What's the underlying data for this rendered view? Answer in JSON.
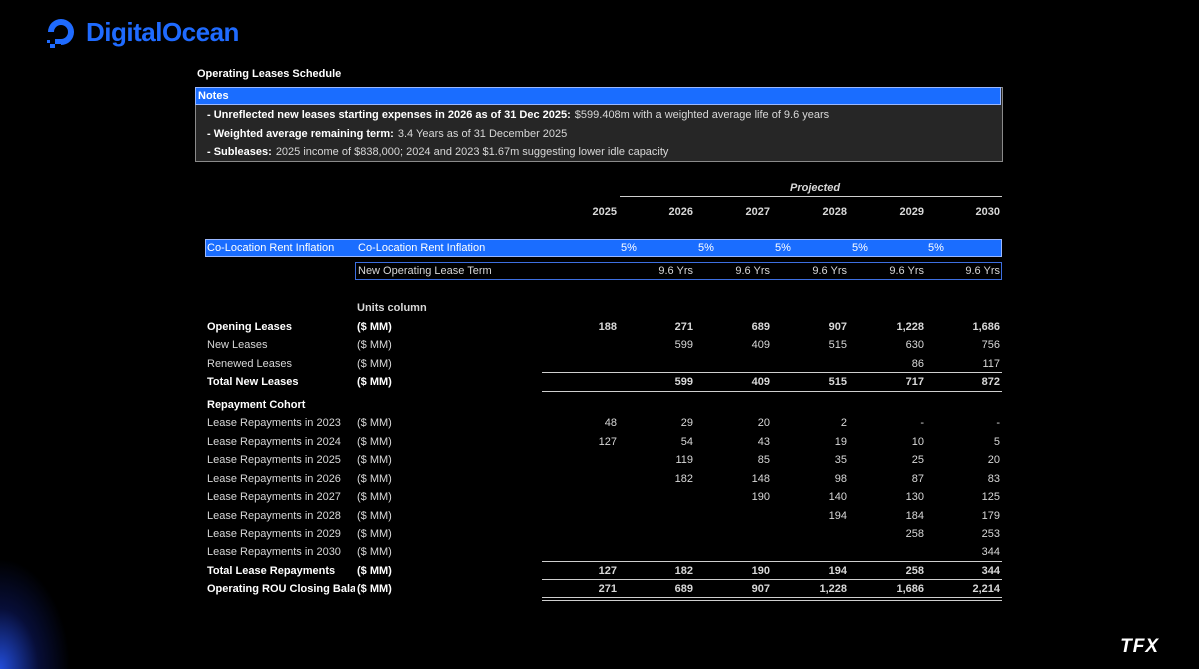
{
  "logo": "DigitalOcean",
  "title": "Operating Leases Schedule",
  "notes": {
    "header": "Notes",
    "items": [
      {
        "label": "- Unreflected new leases starting expenses in 2026 as of 31 Dec 2025:",
        "text": "$599.408m with a weighted average life of 9.6 years"
      },
      {
        "label": "- Weighted average remaining term:",
        "text": "3.4 Years as of 31 December 2025"
      },
      {
        "label": "- Subleases:",
        "text": "2025 income of $838,000; 2024 and 2023 $1.67m suggesting lower idle capacity"
      }
    ]
  },
  "projected_label": "Projected",
  "years": [
    "2025",
    "2026",
    "2027",
    "2028",
    "2029",
    "2030"
  ],
  "inflation_row": {
    "label": "Co-Location Rent Inflation",
    "label2": "Co-Location Rent Inflation",
    "values": [
      null,
      "5%",
      "5%",
      "5%",
      "5%",
      "5%"
    ]
  },
  "term_row": {
    "label": "New Operating Lease Term",
    "values": [
      null,
      "9.6 Yrs",
      "9.6 Yrs",
      "9.6 Yrs",
      "9.6 Yrs",
      "9.6 Yrs"
    ]
  },
  "units_header": "Units column",
  "rows": [
    {
      "label": "Opening Leases",
      "unit": "($ MM)",
      "bold": true,
      "values": [
        "188",
        "271",
        "689",
        "907",
        "1,228",
        "1,686"
      ]
    },
    {
      "label": "New Leases",
      "unit": "($ MM)",
      "values": [
        null,
        "599",
        "409",
        "515",
        "630",
        "756"
      ]
    },
    {
      "label": "Renewed Leases",
      "unit": "($ MM)",
      "values": [
        null,
        null,
        null,
        null,
        "86",
        "117"
      ]
    },
    {
      "label": "Total New Leases",
      "unit": "($ MM)",
      "bold": true,
      "total": true,
      "values": [
        null,
        "599",
        "409",
        "515",
        "717",
        "872"
      ]
    },
    {
      "label": "Repayment Cohort",
      "bold": true
    },
    {
      "label": "Lease Repayments in 2023",
      "unit": "($ MM)",
      "values": [
        "48",
        "29",
        "20",
        "2",
        "-",
        "-"
      ]
    },
    {
      "label": "Lease Repayments in 2024",
      "unit": "($ MM)",
      "values": [
        "127",
        "54",
        "43",
        "19",
        "10",
        "5"
      ]
    },
    {
      "label": "Lease Repayments in 2025",
      "unit": "($ MM)",
      "values": [
        null,
        "119",
        "85",
        "35",
        "25",
        "20"
      ]
    },
    {
      "label": "Lease Repayments in 2026",
      "unit": "($ MM)",
      "values": [
        null,
        "182",
        "148",
        "98",
        "87",
        "83"
      ]
    },
    {
      "label": "Lease Repayments in 2027",
      "unit": "($ MM)",
      "values": [
        null,
        null,
        "190",
        "140",
        "130",
        "125"
      ]
    },
    {
      "label": "Lease Repayments in 2028",
      "unit": "($ MM)",
      "values": [
        null,
        null,
        null,
        "194",
        "184",
        "179"
      ]
    },
    {
      "label": "Lease Repayments in 2029",
      "unit": "($ MM)",
      "values": [
        null,
        null,
        null,
        null,
        "258",
        "253"
      ]
    },
    {
      "label": "Lease Repayments in 2030",
      "unit": "($ MM)",
      "values": [
        null,
        null,
        null,
        null,
        null,
        "344"
      ]
    },
    {
      "label": "Total Lease Repayments",
      "unit": "($ MM)",
      "bold": true,
      "total": true,
      "values": [
        "127",
        "182",
        "190",
        "194",
        "258",
        "344"
      ]
    },
    {
      "label": "Operating ROU Closing Balance",
      "unit": "($ MM)",
      "bold": true,
      "final": true,
      "values": [
        "271",
        "689",
        "907",
        "1,228",
        "1,686",
        "2,214"
      ]
    }
  ],
  "footer": "TFX"
}
